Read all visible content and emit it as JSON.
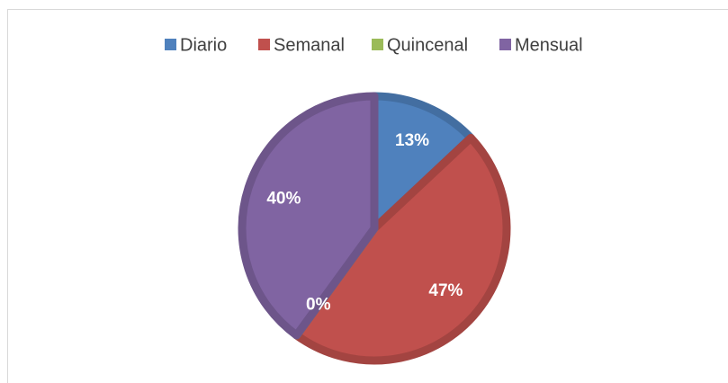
{
  "chart_data": {
    "type": "pie",
    "categories": [
      "Diario",
      "Semanal",
      "Quincenal",
      "Mensual"
    ],
    "values": [
      13,
      47,
      0,
      40
    ],
    "value_labels": [
      "13%",
      "47%",
      "0%",
      "40%"
    ],
    "colors": [
      "#4f81bd",
      "#c0504d",
      "#9bbb59",
      "#8064a2"
    ],
    "legend": "top"
  }
}
